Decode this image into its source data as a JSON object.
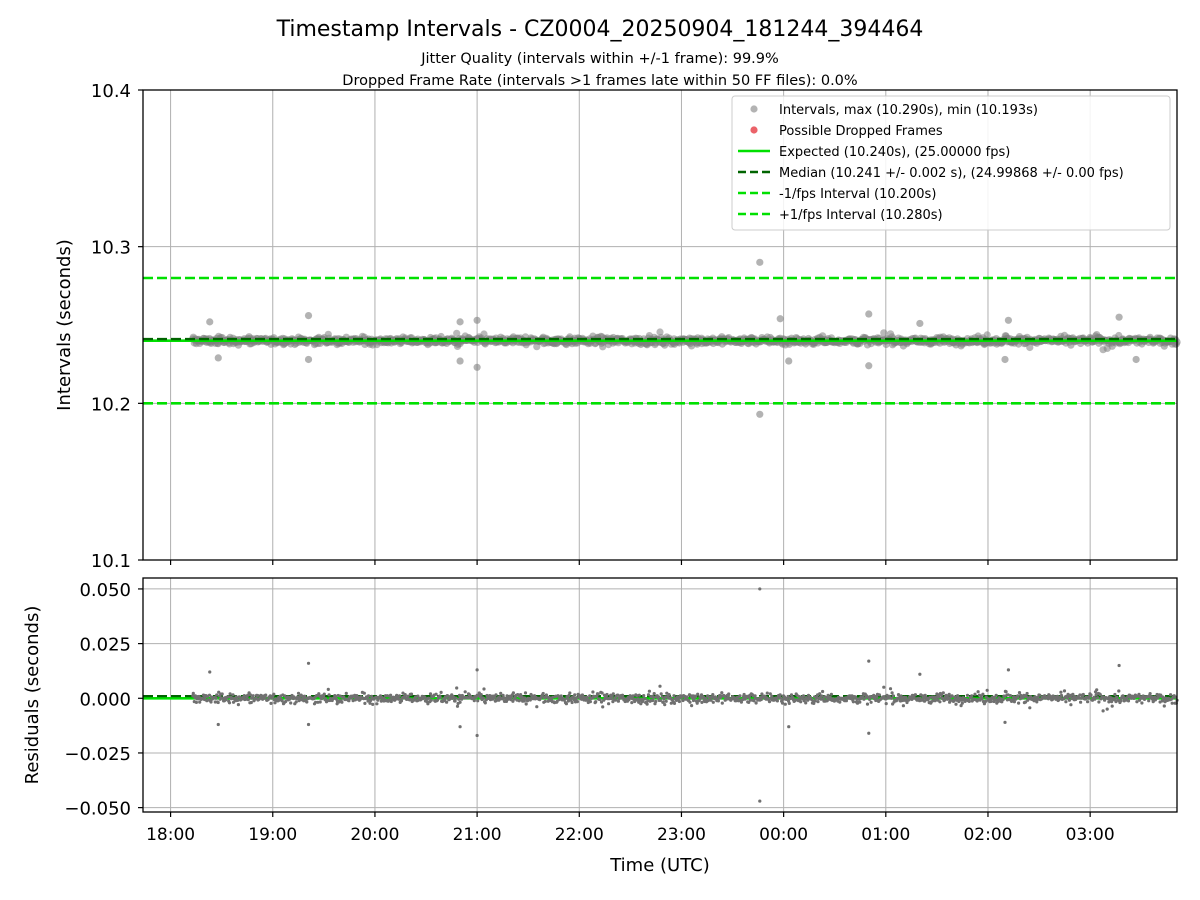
{
  "chart_data": [
    {
      "type": "scatter",
      "title": "Timestamp Intervals - CZ0004_20250904_181244_394464",
      "subtitle_lines": [
        "Jitter Quality (intervals within +/-1 frame): 99.9%",
        "Dropped Frame Rate (intervals >1 frames late within 50 FF files): 0.0%"
      ],
      "xlabel": "",
      "ylabel": "Intervals (seconds)",
      "ylim": [
        10.1,
        10.4
      ],
      "yticks": [
        "10.1",
        "10.2",
        "10.3",
        "10.4"
      ],
      "xlim_hours": [
        17.73,
        27.85
      ],
      "grid": true,
      "legend_position": "top-right",
      "legend": [
        {
          "label": "Intervals, max (10.290s), min (10.193s)",
          "kind": "marker",
          "color": "#808080"
        },
        {
          "label": "Possible Dropped Frames",
          "kind": "marker",
          "color": "#e8474f"
        },
        {
          "label": "Expected (10.240s), (25.00000 fps)",
          "kind": "solid",
          "color": "#00e000"
        },
        {
          "label": "Median (10.241 +/- 0.002 s), (24.99868 +/- 0.00 fps)",
          "kind": "dashed",
          "color": "#006400"
        },
        {
          "label": "-1/fps Interval (10.200s)",
          "kind": "dashed",
          "color": "#00e000"
        },
        {
          "label": "+1/fps Interval (10.280s)",
          "kind": "dashed",
          "color": "#00e000"
        }
      ],
      "lines": {
        "expected": 10.24,
        "median": 10.241,
        "minus_1_fps": 10.2,
        "plus_1_fps": 10.28
      },
      "series": [
        {
          "name": "Intervals, max (10.290s), min (10.193s)",
          "x_range_time": [
            "18:13",
            "03:51"
          ],
          "typical_center": 10.24,
          "typical_spread": 0.004,
          "points": [
            {
              "x": "23:46",
              "y": 10.29
            },
            {
              "x": "23:46",
              "y": 10.193
            },
            {
              "x": "19:21",
              "y": 10.256
            },
            {
              "x": "00:50",
              "y": 10.257
            },
            {
              "x": "03:17",
              "y": 10.255
            },
            {
              "x": "20:50",
              "y": 10.252
            },
            {
              "x": "21:00",
              "y": 10.253
            },
            {
              "x": "21:00",
              "y": 10.223
            },
            {
              "x": "20:50",
              "y": 10.227
            },
            {
              "x": "00:50",
              "y": 10.224
            },
            {
              "x": "18:23",
              "y": 10.252
            },
            {
              "x": "18:28",
              "y": 10.229
            },
            {
              "x": "19:21",
              "y": 10.228
            },
            {
              "x": "23:58",
              "y": 10.254
            },
            {
              "x": "00:03",
              "y": 10.227
            },
            {
              "x": "01:20",
              "y": 10.251
            },
            {
              "x": "02:12",
              "y": 10.253
            },
            {
              "x": "02:10",
              "y": 10.228
            },
            {
              "x": "03:27",
              "y": 10.228
            }
          ]
        }
      ]
    },
    {
      "type": "scatter",
      "title": "",
      "xlabel": "Time (UTC)",
      "ylabel": "Residuals (seconds)",
      "ylim": [
        -0.052,
        0.055
      ],
      "yticks": [
        "−0.050",
        "−0.025",
        "0.000",
        "0.025",
        "0.050"
      ],
      "xticks": [
        "18:00",
        "19:00",
        "20:00",
        "21:00",
        "22:00",
        "23:00",
        "00:00",
        "01:00",
        "02:00",
        "03:00"
      ],
      "grid": true,
      "lines": {
        "expected_residual": 0.0,
        "median_residual": 0.001
      },
      "series": [
        {
          "name": "Residuals",
          "x_range_time": [
            "18:13",
            "03:51"
          ],
          "typical_center": 0.0,
          "typical_spread": 0.004,
          "points": [
            {
              "x": "23:46",
              "y": 0.05
            },
            {
              "x": "23:46",
              "y": -0.047
            },
            {
              "x": "19:21",
              "y": 0.016
            },
            {
              "x": "00:50",
              "y": 0.017
            },
            {
              "x": "03:17",
              "y": 0.015
            },
            {
              "x": "21:00",
              "y": 0.013
            },
            {
              "x": "21:00",
              "y": -0.017
            },
            {
              "x": "20:50",
              "y": -0.013
            },
            {
              "x": "00:50",
              "y": -0.016
            },
            {
              "x": "18:23",
              "y": 0.012
            },
            {
              "x": "18:28",
              "y": -0.012
            },
            {
              "x": "19:21",
              "y": -0.012
            },
            {
              "x": "00:03",
              "y": -0.013
            },
            {
              "x": "01:20",
              "y": 0.011
            },
            {
              "x": "02:12",
              "y": 0.013
            },
            {
              "x": "02:10",
              "y": -0.011
            }
          ]
        }
      ]
    }
  ],
  "colors": {
    "points": "#808080",
    "dropped": "#e8474f",
    "expected": "#00e000",
    "median": "#006400",
    "grid": "#b0b0b0"
  }
}
